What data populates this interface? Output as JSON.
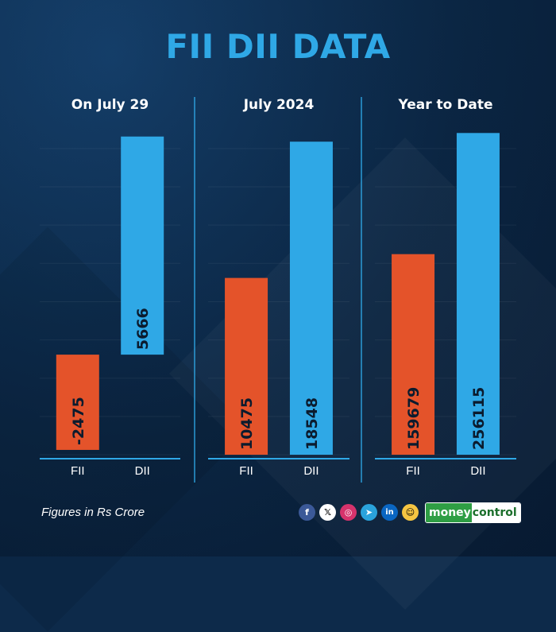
{
  "title": "FII DII DATA",
  "footnote": "Figures in Rs Crore",
  "brand": {
    "part1": "money",
    "part2": "control"
  },
  "social_icons": [
    "facebook-icon",
    "x-icon",
    "instagram-icon",
    "telegram-icon",
    "linkedin-icon",
    "snapchat-icon"
  ],
  "colors": {
    "fii": "#e4532a",
    "dii": "#2fa8e6",
    "title": "#2fa8e6",
    "background": "#0d2a4a"
  },
  "chart_data": [
    {
      "type": "bar",
      "title": "On July 29",
      "categories": [
        "FII",
        "DII"
      ],
      "values": [
        -2475,
        5666
      ],
      "ylim": [
        -2600,
        5950
      ],
      "grid": true
    },
    {
      "type": "bar",
      "title": "July 2024",
      "categories": [
        "FII",
        "DII"
      ],
      "values": [
        10475,
        18548
      ],
      "ylim": [
        0,
        19500
      ],
      "grid": true
    },
    {
      "type": "bar",
      "title": "Year to Date",
      "categories": [
        "FII",
        "DII"
      ],
      "values": [
        159679,
        256115
      ],
      "ylim": [
        0,
        262000
      ],
      "grid": true
    }
  ]
}
